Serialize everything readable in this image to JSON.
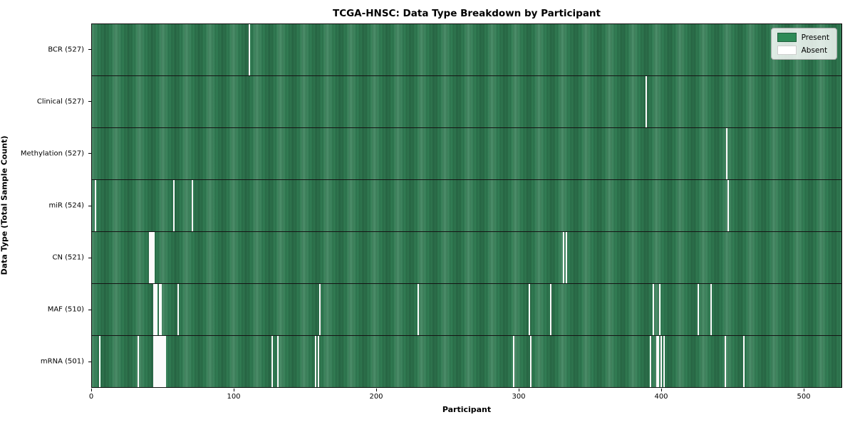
{
  "chart_data": {
    "type": "heatmap",
    "title": "TCGA-HNSC: Data Type Breakdown by Participant",
    "xlabel": "Participant",
    "ylabel": "Data Type (Total Sample Count)",
    "x_ticks": [
      0,
      100,
      200,
      300,
      400,
      500
    ],
    "x_max": 527,
    "grid": false,
    "legend_position": "upper right",
    "legend": {
      "present": "Present",
      "absent": "Absent"
    },
    "colors": {
      "present": "#2e8b57",
      "present_edge": "#235f3e",
      "absent": "#ffffff"
    },
    "rows": [
      {
        "label": "BCR (527)",
        "total_samples": 527,
        "absent_participants": [
          110
        ]
      },
      {
        "label": "Clinical (527)",
        "total_samples": 527,
        "absent_participants": [
          389
        ]
      },
      {
        "label": "Methylation (527)",
        "total_samples": 527,
        "absent_participants": [
          446
        ]
      },
      {
        "label": "miR (524)",
        "total_samples": 524,
        "absent_participants": [
          2,
          57,
          70,
          447
        ]
      },
      {
        "label": "CN (521)",
        "total_samples": 521,
        "absent_participants": [
          40,
          41,
          42,
          43,
          331,
          333
        ]
      },
      {
        "label": "MAF (510)",
        "total_samples": 510,
        "absent_participants": [
          43,
          44,
          45,
          47,
          48,
          60,
          160,
          229,
          307,
          322,
          394,
          399,
          426,
          435
        ]
      },
      {
        "label": "mRNA (501)",
        "total_samples": 501,
        "absent_participants": [
          5,
          32,
          43,
          44,
          45,
          46,
          47,
          48,
          49,
          50,
          51,
          126,
          130,
          157,
          159,
          296,
          308,
          392,
          397,
          398,
          400,
          402,
          445,
          458
        ]
      }
    ]
  }
}
